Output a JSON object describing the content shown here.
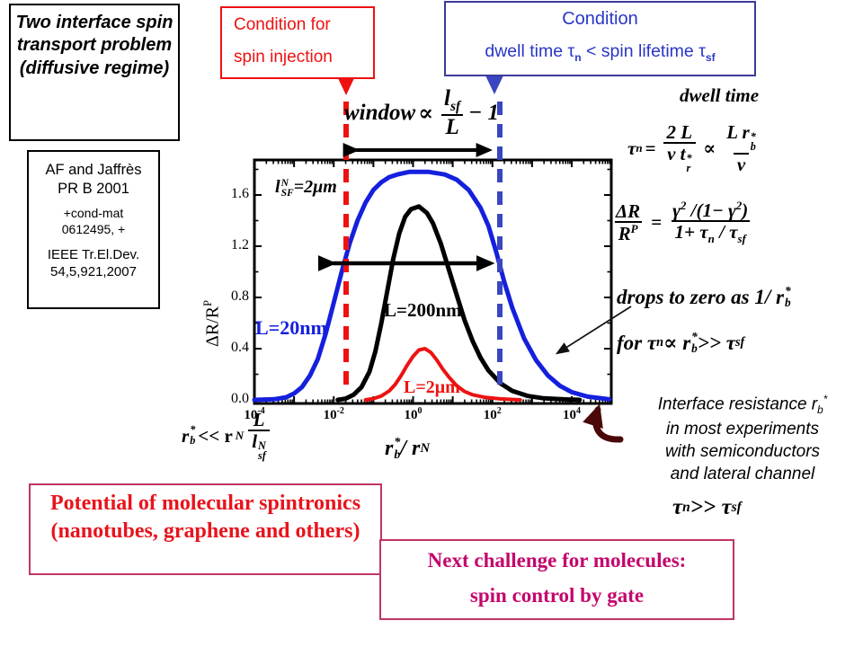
{
  "title_box": {
    "text": "Two interface spin transport problem (diffusive regime)"
  },
  "citation_box": {
    "lines": [
      "AF and Jaffrès",
      "PR B 2001",
      "+cond-mat",
      "0612495, +",
      "IEEE Tr.El.Dev.",
      "54,5,921,2007"
    ]
  },
  "red_box": {
    "line1": "Condition for",
    "line2": "spin injection",
    "color": "#ee1111"
  },
  "blue_box": {
    "title": "Condition",
    "dwell_pre": "dwell time ",
    "tau1": "τ",
    "tau1_sub": "n",
    "mid": " < spin lifetime ",
    "tau2": "τ",
    "tau2_sub": "sf",
    "color": "#2936c8"
  },
  "eq_window": {
    "word": "window",
    "prop": "∝",
    "num_base": "l",
    "num_sub": "sf",
    "den": "L",
    "tail": "− 1"
  },
  "dwell_heading": "dwell  time",
  "eq_tau": {
    "lhs": "τ",
    "lhs_sub": "n",
    "equals": "=",
    "num": "2 L",
    "den_base": "v t",
    "den_sup": "*",
    "den_sub": "r",
    "prop": "∝",
    "num2_base": "L r",
    "num2_sup": "*",
    "num2_sub": "b",
    "den2": "v"
  },
  "eq_dr": {
    "num1": "ΔR",
    "den1_base": "R",
    "den1_sup": "P",
    "equals": "=",
    "num2_a": "γ",
    "num2_a_sup": "2",
    "num2_b": " /(1− γ",
    "num2_b_sup": "2",
    "num2_c": ")",
    "den2_a": "1+ τ",
    "den2_a_sub": "n",
    "den2_b": " / τ",
    "den2_b_sub": "sf"
  },
  "drops_line": {
    "a": "drops to zero as  1/ r",
    "sup": "*",
    "sub": "b"
  },
  "for_line": {
    "a": "for  τ",
    "a_sub": "n",
    "b": " ∝ r",
    "b_sup": "*",
    "b_sub": "b",
    "c": " >> τ",
    "c_sub": "sf"
  },
  "interface_note": {
    "line1_a": "Interface resistance r",
    "line1_sub": "b",
    "line1_sup": "*",
    "line2": "in most experiments",
    "line3": "with semiconductors",
    "line4": "and lateral channel"
  },
  "eq_taun_taus": {
    "a": "τ",
    "a_sub": "n",
    "b": " >> τ",
    "b_sub": "sf"
  },
  "eq_rb_condition": {
    "a": "r",
    "a_sup": "*",
    "a_sub": "b",
    "b": "<< r",
    "b_sub": "N",
    "num": "L",
    "den_base": "l",
    "den_sup": "N",
    "den_sub": "sf"
  },
  "xaxis_formula": {
    "a": "r",
    "a_sup": "*",
    "a_sub": "b",
    "b": " / r",
    "b_sub": "N"
  },
  "potential_box": {
    "text": "Potential of molecular spintronics (nanotubes, graphene and others)",
    "text_color": "#e8131c",
    "border_color": "#c03468"
  },
  "challenge_box": {
    "line1": "Next challenge for molecules:",
    "line2": "spin control by gate",
    "text_color": "#c4066c",
    "border_color": "#c03468"
  },
  "chart_data": {
    "type": "line",
    "xscale": "log",
    "xlabel": "rb* / rN",
    "ylabel": "ΔR/RP",
    "xlim_log": [
      -4,
      5
    ],
    "ylim": [
      -0.05,
      1.87
    ],
    "xtick_exponents": [
      -4,
      -2,
      0,
      2,
      4
    ],
    "yticks": [
      0.0,
      0.4,
      0.8,
      1.2,
      1.6
    ],
    "grid": false,
    "annotation_lsf": {
      "base": "l",
      "sup": "N",
      "sub": "SF",
      "tail": "=2μm"
    },
    "annotation_window_level": 1.07,
    "red_dashed_x_log": -1.7,
    "blue_dashed_x_log": 2.19,
    "series": [
      {
        "key": "blue",
        "name": "L=20nm",
        "color": "#1520dd",
        "width": 5,
        "points": [
          [
            -4,
            0
          ],
          [
            -3.5,
            0.005
          ],
          [
            -3.2,
            0.02
          ],
          [
            -3.0,
            0.05
          ],
          [
            -2.8,
            0.1
          ],
          [
            -2.6,
            0.19
          ],
          [
            -2.4,
            0.32
          ],
          [
            -2.2,
            0.52
          ],
          [
            -2.0,
            0.76
          ],
          [
            -1.8,
            1.0
          ],
          [
            -1.6,
            1.22
          ],
          [
            -1.4,
            1.4
          ],
          [
            -1.2,
            1.54
          ],
          [
            -1.0,
            1.64
          ],
          [
            -0.8,
            1.7
          ],
          [
            -0.6,
            1.74
          ],
          [
            -0.4,
            1.76
          ],
          [
            -0.1,
            1.78
          ],
          [
            0.4,
            1.78
          ],
          [
            0.8,
            1.76
          ],
          [
            1.1,
            1.72
          ],
          [
            1.4,
            1.64
          ],
          [
            1.7,
            1.5
          ],
          [
            1.9,
            1.36
          ],
          [
            2.1,
            1.15
          ],
          [
            2.3,
            0.92
          ],
          [
            2.5,
            0.72
          ],
          [
            2.8,
            0.48
          ],
          [
            3.1,
            0.31
          ],
          [
            3.4,
            0.19
          ],
          [
            3.7,
            0.11
          ],
          [
            4.0,
            0.06
          ],
          [
            4.4,
            0.025
          ],
          [
            4.95,
            0.005
          ]
        ]
      },
      {
        "key": "black",
        "name": "L=200nm",
        "color": "#000000",
        "width": 5,
        "points": [
          [
            -1.9,
            0
          ],
          [
            -1.7,
            0.01
          ],
          [
            -1.5,
            0.04
          ],
          [
            -1.3,
            0.1
          ],
          [
            -1.1,
            0.22
          ],
          [
            -0.95,
            0.38
          ],
          [
            -0.8,
            0.6
          ],
          [
            -0.65,
            0.85
          ],
          [
            -0.5,
            1.1
          ],
          [
            -0.35,
            1.3
          ],
          [
            -0.2,
            1.43
          ],
          [
            -0.05,
            1.49
          ],
          [
            0.15,
            1.51
          ],
          [
            0.35,
            1.46
          ],
          [
            0.5,
            1.38
          ],
          [
            0.7,
            1.22
          ],
          [
            0.9,
            1.02
          ],
          [
            1.1,
            0.82
          ],
          [
            1.3,
            0.62
          ],
          [
            1.5,
            0.46
          ],
          [
            1.7,
            0.33
          ],
          [
            1.9,
            0.23
          ],
          [
            2.2,
            0.13
          ],
          [
            2.5,
            0.07
          ],
          [
            2.9,
            0.03
          ],
          [
            3.3,
            0.012
          ],
          [
            3.8,
            0.004
          ],
          [
            4.2,
            0
          ]
        ]
      },
      {
        "key": "red",
        "name": "L=2μm",
        "color": "#ee1111",
        "width": 4,
        "points": [
          [
            -1.2,
            0
          ],
          [
            -1.0,
            0.01
          ],
          [
            -0.8,
            0.03
          ],
          [
            -0.6,
            0.07
          ],
          [
            -0.45,
            0.12
          ],
          [
            -0.3,
            0.19
          ],
          [
            -0.15,
            0.27
          ],
          [
            0,
            0.34
          ],
          [
            0.15,
            0.39
          ],
          [
            0.3,
            0.4
          ],
          [
            0.45,
            0.37
          ],
          [
            0.6,
            0.31
          ],
          [
            0.75,
            0.24
          ],
          [
            0.9,
            0.18
          ],
          [
            1.1,
            0.11
          ],
          [
            1.3,
            0.065
          ],
          [
            1.5,
            0.04
          ],
          [
            1.8,
            0.02
          ],
          [
            2.2,
            0.008
          ],
          [
            2.7,
            0
          ]
        ]
      }
    ]
  }
}
